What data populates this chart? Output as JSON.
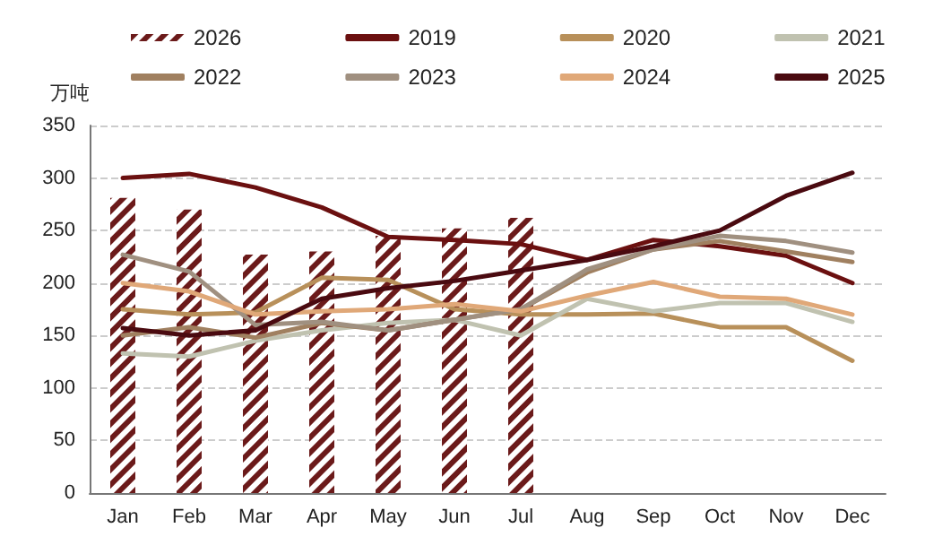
{
  "chart_data": {
    "type": "line",
    "ylabel": "万吨",
    "categories": [
      "Jan",
      "Feb",
      "Mar",
      "Apr",
      "May",
      "Jun",
      "Jul",
      "Aug",
      "Sep",
      "Oct",
      "Nov",
      "Dec"
    ],
    "series": [
      {
        "name": "2026",
        "type": "bar",
        "color": "#6b1a1a",
        "values": [
          281,
          270,
          227,
          230,
          245,
          252,
          262,
          null,
          null,
          null,
          null,
          null
        ]
      },
      {
        "name": "2019",
        "color": "#6b1010",
        "values": [
          300,
          304,
          291,
          272,
          244,
          241,
          237,
          222,
          241,
          235,
          226,
          200
        ]
      },
      {
        "name": "2020",
        "color": "#b8905a",
        "values": [
          175,
          170,
          172,
          205,
          203,
          175,
          170,
          170,
          171,
          158,
          158,
          126
        ]
      },
      {
        "name": "2021",
        "color": "#c0c2b0",
        "values": [
          133,
          130,
          145,
          155,
          162,
          165,
          150,
          185,
          173,
          181,
          181,
          163
        ]
      },
      {
        "name": "2022",
        "color": "#a08060",
        "values": [
          150,
          158,
          148,
          162,
          155,
          165,
          175,
          210,
          232,
          240,
          230,
          220
        ]
      },
      {
        "name": "2023",
        "color": "#a09080",
        "values": [
          227,
          211,
          160,
          163,
          155,
          165,
          175,
          213,
          232,
          245,
          240,
          229
        ]
      },
      {
        "name": "2024",
        "color": "#e0a878",
        "values": [
          200,
          192,
          170,
          173,
          175,
          180,
          173,
          188,
          201,
          187,
          185,
          170
        ]
      },
      {
        "name": "2025",
        "color": "#4a0a10",
        "values": [
          157,
          150,
          155,
          185,
          195,
          202,
          212,
          222,
          235,
          250,
          283,
          305
        ]
      }
    ],
    "ylim": [
      0,
      350
    ],
    "yticks": [
      0,
      50,
      100,
      150,
      200,
      250,
      300,
      350
    ],
    "grid": "y",
    "legend": "top",
    "marker": "none",
    "line_style": "solid"
  }
}
